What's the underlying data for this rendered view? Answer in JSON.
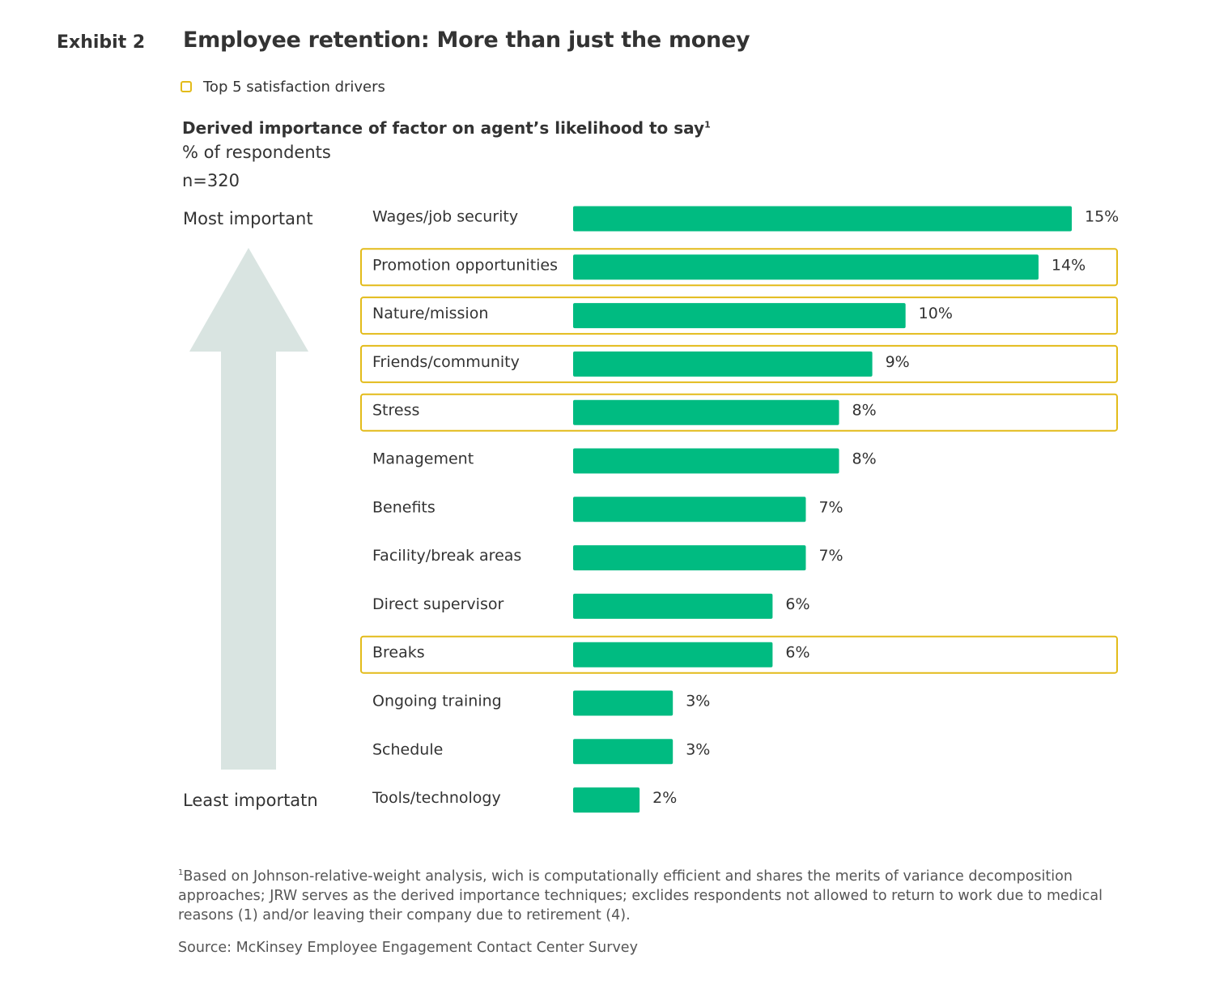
{
  "header": {
    "exhibit": "Exhibit 2",
    "title": "Employee retention: More than just the money"
  },
  "legend": {
    "label": "Top 5 satisfaction drivers"
  },
  "subtitle": {
    "text": "Derived importance of factor on agent’s likelihood to say",
    "superscript": "1"
  },
  "unit_label": "% of respondents",
  "sample_label": "n=320",
  "axis": {
    "top_label": "Most important",
    "bottom_label": "Least importatn"
  },
  "colors": {
    "bar": "#00bb81",
    "highlight": "#e3bb1a",
    "arrow": "#d9e4e1"
  },
  "chart_data": {
    "type": "bar",
    "orientation": "horizontal",
    "title": "Employee retention: More than just the money",
    "subtitle": "Derived importance of factor on agent’s likelihood to say",
    "xlabel": "% of respondents",
    "ylabel": "",
    "xlim": [
      0,
      15
    ],
    "grid": false,
    "legend": [
      "Top 5 satisfaction drivers"
    ],
    "categories": [
      "Wages/job security",
      "Promotion opportunities",
      "Nature/mission",
      "Friends/community",
      "Stress",
      "Management",
      "Benefits",
      "Facility/break areas",
      "Direct supervisor",
      "Breaks",
      "Ongoing training",
      "Schedule",
      "Tools/technology"
    ],
    "values": [
      15,
      14,
      10,
      9,
      8,
      8,
      7,
      7,
      6,
      6,
      3,
      3,
      2
    ],
    "value_labels": [
      "15%",
      "14%",
      "10%",
      "9%",
      "8%",
      "8%",
      "7%",
      "7%",
      "6%",
      "6%",
      "3%",
      "3%",
      "2%"
    ],
    "highlighted": [
      false,
      true,
      true,
      true,
      true,
      false,
      false,
      false,
      false,
      true,
      false,
      false,
      false
    ]
  },
  "footnote": {
    "marker": "1",
    "text": "Based on Johnson-relative-weight analysis, wich is computationally efficient and shares the merits of variance decomposition approaches; JRW serves as the derived importance techniques; exclides respondents not allowed to return to work due to medical reasons (1) and/or leaving their company due to retirement (4)."
  },
  "source": "Source: McKinsey Employee Engagement Contact Center Survey"
}
